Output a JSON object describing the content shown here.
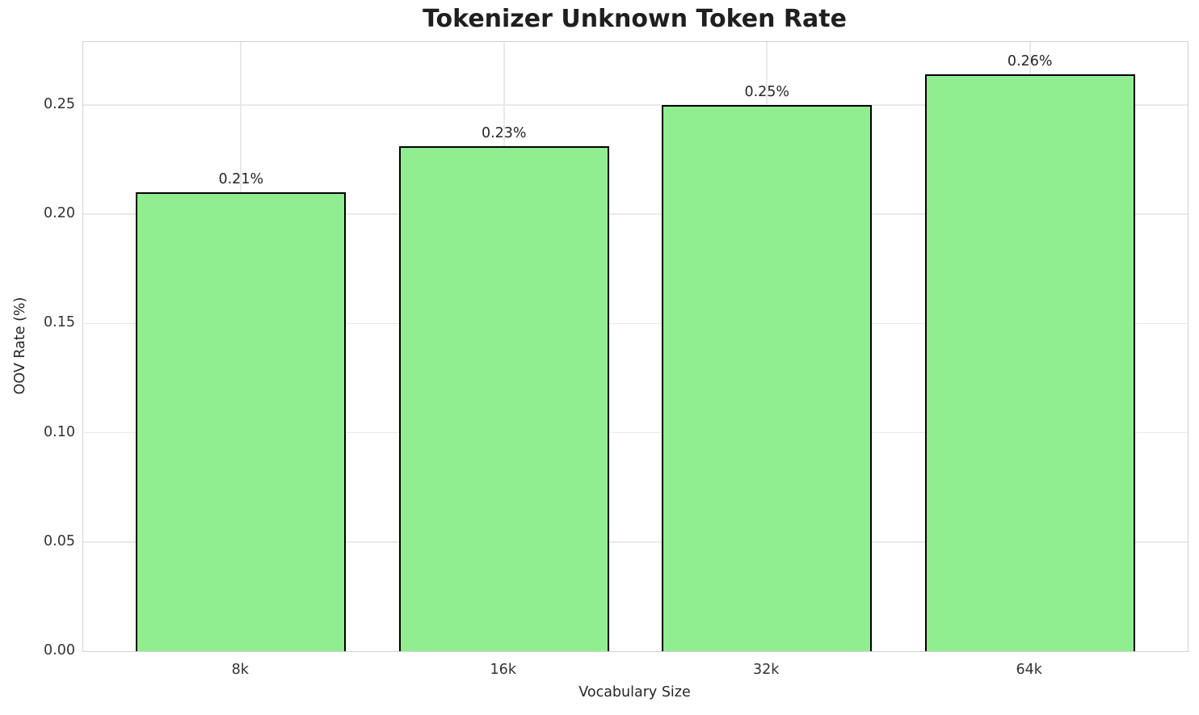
{
  "chart_data": {
    "type": "bar",
    "title": "Tokenizer Unknown Token Rate",
    "xlabel": "Vocabulary Size",
    "ylabel": "OOV Rate (%)",
    "categories": [
      "8k",
      "16k",
      "32k",
      "64k"
    ],
    "values": [
      0.21,
      0.231,
      0.25,
      0.264
    ],
    "bar_labels": [
      "0.21%",
      "0.23%",
      "0.25%",
      "0.26%"
    ],
    "ytick_values": [
      0.0,
      0.05,
      0.1,
      0.15,
      0.2,
      0.25
    ],
    "ytick_labels": [
      "0.00",
      "0.05",
      "0.10",
      "0.15",
      "0.20",
      "0.25"
    ],
    "ylim": [
      0,
      0.2788
    ],
    "grid": true,
    "legend": false,
    "bar_width_fraction": 0.8,
    "colors": {
      "bar_fill": "#90ee90",
      "bar_edge": "#000000",
      "grid": "#e9e9e9",
      "spine": "#d2d2d2",
      "title_text": "#1f1f1f",
      "tick_text": "#333333",
      "label_text": "#262626",
      "background": "#ffffff"
    }
  }
}
